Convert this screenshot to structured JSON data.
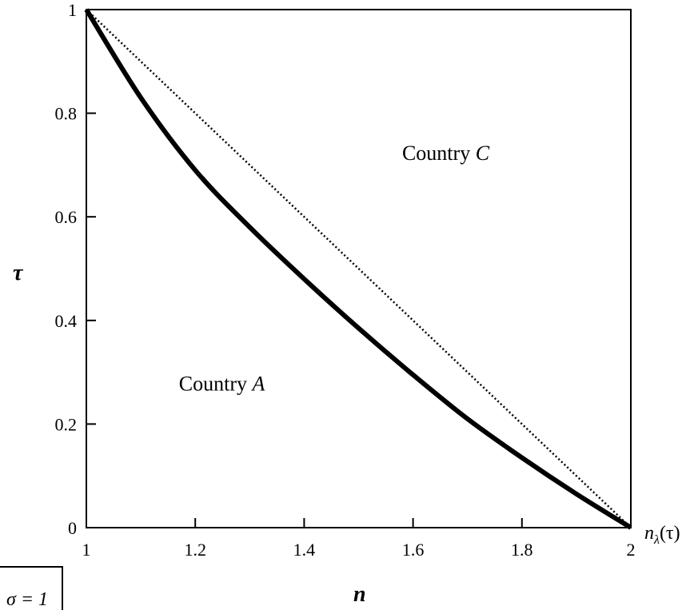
{
  "chart_data": {
    "type": "line",
    "xlabel": "n",
    "ylabel": "τ",
    "xlim": [
      1,
      2
    ],
    "ylim": [
      0,
      1
    ],
    "grid": false,
    "x_ticks": [
      "1",
      "1.2",
      "1.4",
      "1.6",
      "1.8",
      "2"
    ],
    "y_ticks": [
      "0",
      "0.2",
      "0.4",
      "0.6",
      "0.8",
      "1"
    ],
    "series": [
      {
        "style": "solid-thick",
        "x": [
          1.0,
          1.1,
          1.2,
          1.3,
          1.4,
          1.5,
          1.6,
          1.7,
          1.8,
          1.9,
          2.0
        ],
        "y": [
          1.0,
          0.83,
          0.69,
          0.58,
          0.48,
          0.385,
          0.295,
          0.21,
          0.135,
          0.065,
          0.0
        ]
      },
      {
        "style": "dotted",
        "x": [
          1.0,
          2.0
        ],
        "y": [
          1.0,
          0.0
        ]
      }
    ],
    "annotations": {
      "region_c": {
        "text": "Country ",
        "italic": "C",
        "x": 1.58,
        "y": 0.71
      },
      "region_a": {
        "text": "Country ",
        "italic": "A",
        "x": 1.17,
        "y": 0.265
      },
      "curve_label": {
        "text": "n",
        "sub": "λ",
        "suffix": "(τ)"
      },
      "param": {
        "text": "σ = 1"
      }
    }
  }
}
